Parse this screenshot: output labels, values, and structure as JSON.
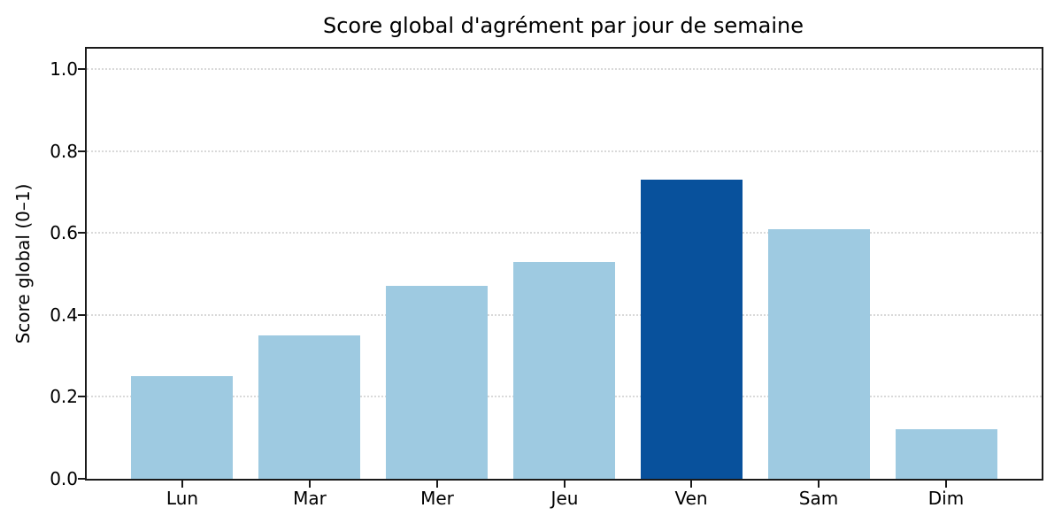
{
  "title": "Score global d'agrément par jour de semaine",
  "chart_data": {
    "type": "bar",
    "title": "Score global d'agrément par jour de semaine",
    "categories": [
      "Lun",
      "Mar",
      "Mer",
      "Jeu",
      "Ven",
      "Sam",
      "Dim"
    ],
    "values": [
      0.25,
      0.35,
      0.47,
      0.53,
      0.73,
      0.61,
      0.12
    ],
    "xlabel": "",
    "ylabel": "Score global (0–1)",
    "ylim": [
      0,
      1.05
    ],
    "yticks": [
      0.0,
      0.2,
      0.4,
      0.6,
      0.8,
      1.0
    ],
    "ytick_labels": [
      "0.0",
      "0.2",
      "0.4",
      "0.6",
      "0.8",
      "1.0"
    ],
    "grid": "horizontal, dotted, light gray, behind bars",
    "legend": "none",
    "bar_color": "#9ecae1",
    "highlight_color": "#08519c",
    "highlight_index": 4,
    "highlight_category": "Ven"
  },
  "colors": {
    "background": "#ffffff",
    "bar_default": "#9ecae1",
    "bar_highlight": "#08519c",
    "grid": "#d9d9d9",
    "spine": "#1a1a1a",
    "text": "#000000"
  }
}
